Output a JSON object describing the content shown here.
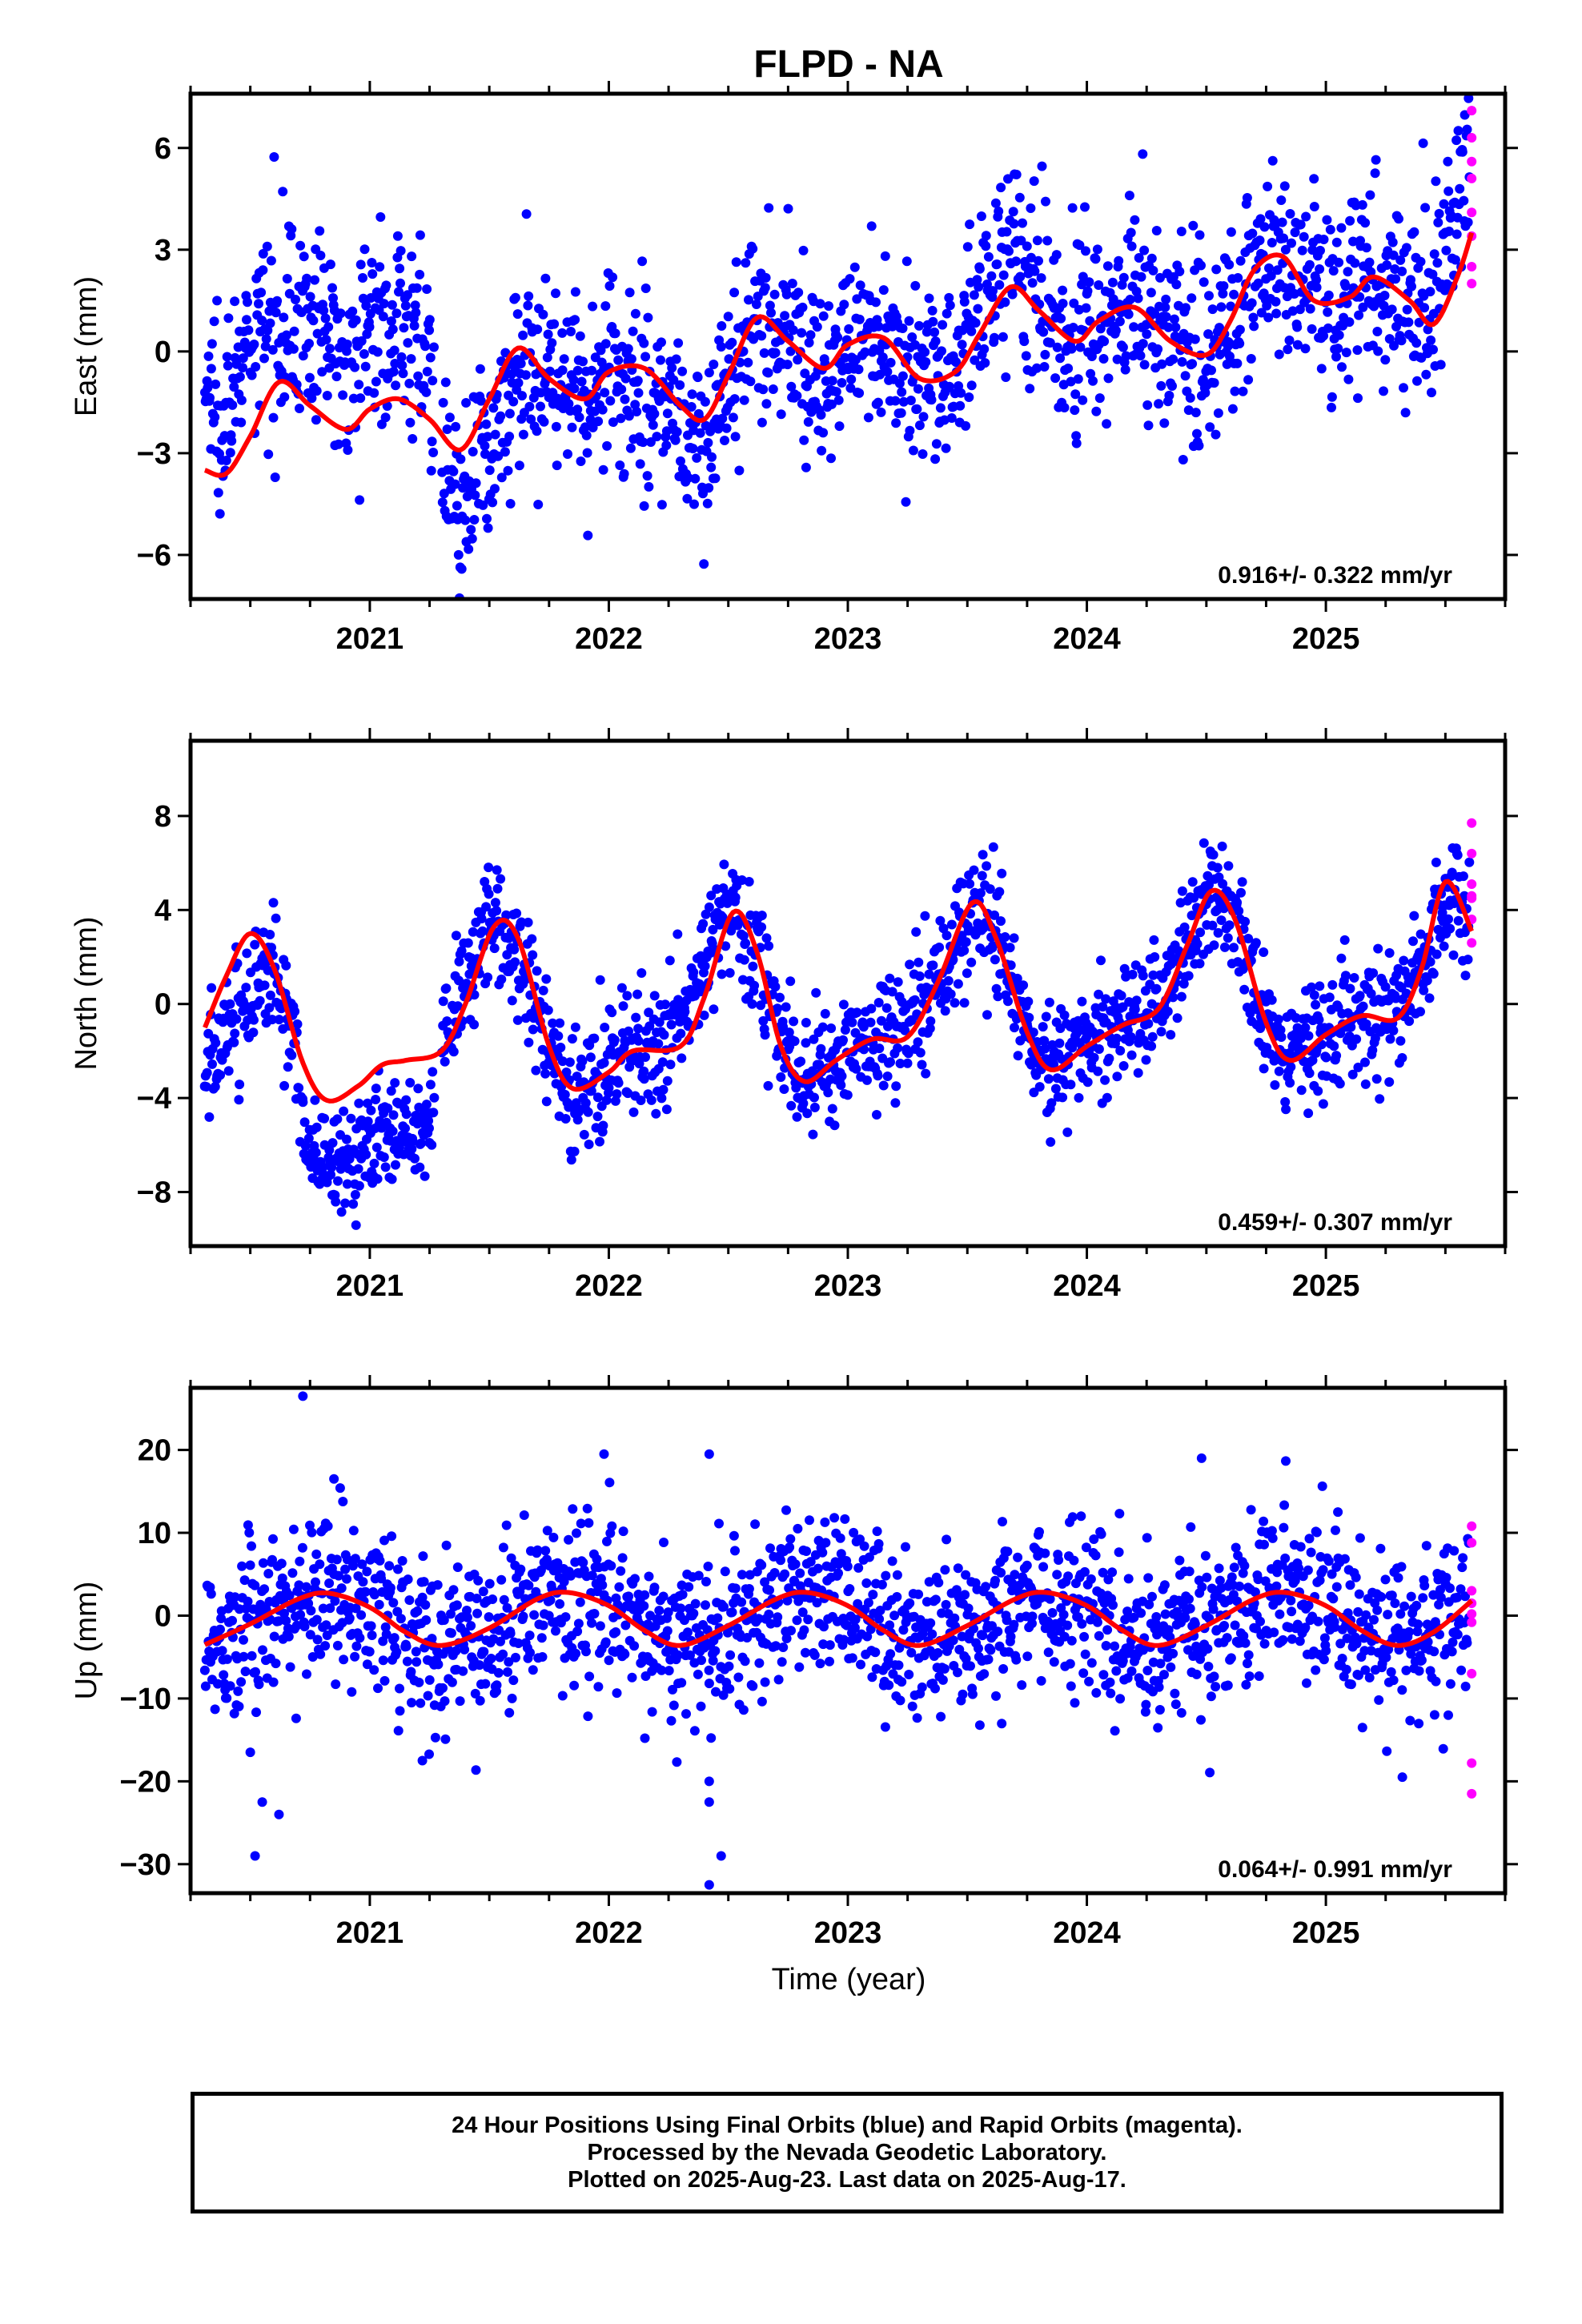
{
  "chart_data": {
    "title": "FLPD - NA",
    "colors": {
      "final": "#0000ff",
      "rapid": "#ff00ff",
      "model": "#ff0000"
    },
    "x_range": [
      2020.25,
      2025.75
    ],
    "x_ticks": [
      "2021",
      "2022",
      "2023",
      "2024",
      "2025"
    ],
    "xlabel": "Time (year)",
    "panels": [
      {
        "name": "east",
        "type": "scatter",
        "ylabel": "East (mm)",
        "ylim": [
          -7.3,
          7.6
        ],
        "y_ticks": [
          6,
          3,
          0,
          -3,
          -6
        ],
        "rate_text": "0.916+/- 0.322 mm/yr",
        "rate": 0.916,
        "model": {
          "offset": -1.8,
          "trend": 0.916,
          "a1": -1.0,
          "b1": -0.6,
          "a2": 0.55,
          "b2": 0.3,
          "noise": 1.4
        },
        "model_x": [
          2020.31,
          2020.4,
          2020.5,
          2020.62,
          2020.75,
          2020.9,
          2021.0,
          2021.12,
          2021.25,
          2021.38,
          2021.5,
          2021.62,
          2021.75,
          2021.9,
          2022.0,
          2022.15,
          2022.3,
          2022.4,
          2022.5,
          2022.62,
          2022.75,
          2022.9,
          2023.0,
          2023.15,
          2023.3,
          2023.45,
          2023.55,
          2023.68,
          2023.8,
          2023.95,
          2024.05,
          2024.2,
          2024.35,
          2024.5,
          2024.6,
          2024.7,
          2024.82,
          2024.95,
          2025.1,
          2025.2,
          2025.35,
          2025.45,
          2025.55,
          2025.61
        ],
        "model_y": [
          -3.5,
          -3.6,
          -2.5,
          -0.9,
          -1.6,
          -2.3,
          -1.7,
          -1.4,
          -2.0,
          -2.9,
          -1.4,
          0.1,
          -0.8,
          -1.4,
          -0.6,
          -0.5,
          -1.6,
          -2.0,
          -0.7,
          1.0,
          0.3,
          -0.5,
          0.2,
          0.4,
          -0.8,
          -0.6,
          0.5,
          1.9,
          1.2,
          0.3,
          0.9,
          1.3,
          0.3,
          -0.1,
          0.9,
          2.4,
          2.8,
          1.5,
          1.6,
          2.2,
          1.5,
          0.8,
          2.2,
          3.5
        ],
        "rapid_x": 2025.61,
        "rapid_y": [
          2.0,
          2.5,
          3.4,
          4.1,
          5.1,
          5.6,
          6.3,
          7.1
        ]
      },
      {
        "name": "north",
        "type": "scatter",
        "ylabel": "North (mm)",
        "ylim": [
          -10.3,
          11.2
        ],
        "y_ticks": [
          8,
          4,
          0,
          -4,
          -8
        ],
        "rate_text": "0.459+/- 0.307 mm/yr",
        "rate": 0.459,
        "model": {
          "offset": -1.2,
          "trend": 0.459,
          "a1": 3.8,
          "b1": -0.5,
          "a2": 0.9,
          "b2": -1.2,
          "noise": 1.3
        },
        "model_x": [
          2020.31,
          2020.4,
          2020.5,
          2020.6,
          2020.72,
          2020.82,
          2020.95,
          2021.05,
          2021.15,
          2021.3,
          2021.4,
          2021.52,
          2021.62,
          2021.75,
          2021.85,
          2022.0,
          2022.1,
          2022.3,
          2022.4,
          2022.52,
          2022.62,
          2022.72,
          2022.82,
          2022.95,
          2023.1,
          2023.25,
          2023.38,
          2023.52,
          2023.62,
          2023.75,
          2023.85,
          2024.0,
          2024.15,
          2024.3,
          2024.42,
          2024.52,
          2024.62,
          2024.75,
          2024.85,
          2025.0,
          2025.15,
          2025.3,
          2025.4,
          2025.5,
          2025.61
        ],
        "model_y": [
          -1.0,
          1.2,
          3.0,
          1.5,
          -2.5,
          -4.1,
          -3.5,
          -2.6,
          -2.4,
          -2.0,
          0.0,
          3.3,
          2.8,
          -1.8,
          -3.6,
          -2.9,
          -2.0,
          -1.8,
          0.3,
          3.9,
          2.2,
          -1.8,
          -3.3,
          -2.4,
          -1.5,
          -1.4,
          1.0,
          4.3,
          2.8,
          -1.2,
          -2.8,
          -1.8,
          -0.9,
          -0.2,
          2.5,
          4.8,
          3.6,
          -0.8,
          -2.4,
          -1.3,
          -0.5,
          -0.6,
          1.5,
          5.2,
          3.1
        ],
        "rapid_x": 2025.61,
        "rapid_y": [
          2.6,
          3.6,
          4.5,
          4.6,
          5.1,
          6.4,
          7.7
        ]
      },
      {
        "name": "up",
        "type": "scatter",
        "ylabel": "Up (mm)",
        "ylim": [
          -33.5,
          27.5
        ],
        "y_ticks": [
          20,
          10,
          0,
          -10,
          -20,
          -30
        ],
        "rate_text": "0.064+/- 0.991 mm/yr",
        "rate": 0.064,
        "model": {
          "offset": -0.4,
          "trend": 0.064,
          "a1": 0.1,
          "b1": -3.0,
          "a2": 0.0,
          "b2": 0.0,
          "noise": 5.0
        },
        "model_x": [
          2020.31,
          2020.5,
          2020.7,
          2020.83,
          2021.0,
          2021.15,
          2021.3,
          2021.5,
          2021.7,
          2021.83,
          2022.0,
          2022.15,
          2022.3,
          2022.5,
          2022.7,
          2022.83,
          2023.0,
          2023.15,
          2023.3,
          2023.5,
          2023.7,
          2023.83,
          2024.0,
          2024.15,
          2024.3,
          2024.5,
          2024.7,
          2024.83,
          2025.0,
          2025.15,
          2025.3,
          2025.45,
          2025.61
        ],
        "model_y": [
          -3.5,
          -1.0,
          2.0,
          2.7,
          1.0,
          -2.0,
          -3.6,
          -1.5,
          2.0,
          2.8,
          1.2,
          -1.8,
          -3.6,
          -1.2,
          2.0,
          2.8,
          1.2,
          -1.8,
          -3.6,
          -1.2,
          2.0,
          2.8,
          1.2,
          -1.8,
          -3.6,
          -1.2,
          2.0,
          2.8,
          1.2,
          -1.8,
          -3.6,
          -2.0,
          1.8
        ],
        "outliers": [
          [
            2020.72,
            26.5
          ],
          [
            2020.52,
            -29.0
          ],
          [
            2020.55,
            -22.5
          ],
          [
            2020.62,
            -24.0
          ],
          [
            2020.5,
            -16.5
          ],
          [
            2022.42,
            -32.5
          ],
          [
            2022.47,
            -29.0
          ],
          [
            2022.42,
            -20.0
          ],
          [
            2022.42,
            -22.5
          ],
          [
            2021.98,
            19.5
          ],
          [
            2022.42,
            19.5
          ],
          [
            2024.48,
            19.0
          ],
          [
            2020.85,
            16.5
          ],
          [
            2021.22,
            -17.5
          ],
          [
            2025.32,
            -19.5
          ]
        ],
        "rapid_x": 2025.61,
        "rapid_y": [
          -21.5,
          -17.8,
          -7.0,
          -0.8,
          0.2,
          1.5,
          3.0,
          8.8,
          10.8
        ]
      }
    ]
  },
  "footer": {
    "line1": "24 Hour Positions Using Final Orbits (blue) and Rapid Orbits (magenta).",
    "line2": "Processed by the Nevada Geodetic Laboratory.",
    "line3": "Plotted on 2025-Aug-23. Last data on 2025-Aug-17."
  }
}
